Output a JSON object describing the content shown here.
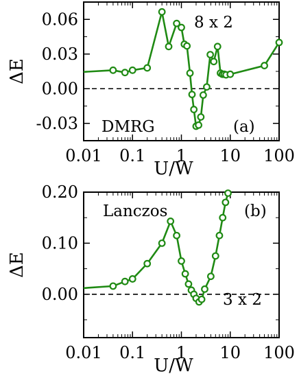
{
  "chart_data": [
    {
      "type": "line",
      "panel": "(a)",
      "method": "DMRG",
      "size": "8 x 2",
      "xlabel": "U/W",
      "ylabel": "ΔE",
      "xscale": "log",
      "xlim": [
        0.01,
        100
      ],
      "ylim": [
        -0.045,
        0.075
      ],
      "xticks": [
        "0.01",
        "0.1",
        "1",
        "10",
        "100"
      ],
      "yticks": [
        "-0.03",
        "0.00",
        "0.03",
        "0.06"
      ],
      "ytick_values": [
        -0.03,
        0.0,
        0.03,
        0.06
      ],
      "reference_line": 0.0,
      "color": "#1f8a13",
      "series": [
        {
          "x": [
            0.01,
            0.04,
            0.07,
            0.1,
            0.2,
            0.4,
            0.55,
            0.8,
            1.0,
            1.15,
            1.3,
            1.5,
            1.65,
            1.8,
            2.0,
            2.25,
            2.5,
            2.8,
            3.3,
            3.9,
            4.6,
            5.5,
            6.3,
            6.9,
            7.5,
            8.2,
            10,
            50,
            100
          ],
          "y": [
            0.0145,
            0.016,
            0.014,
            0.016,
            0.018,
            0.0665,
            0.0365,
            0.0565,
            0.053,
            0.0385,
            0.037,
            0.0135,
            -0.005,
            -0.018,
            -0.0325,
            -0.0315,
            -0.0245,
            -0.0055,
            0.0015,
            0.0295,
            0.0235,
            0.0365,
            0.0135,
            0.0125,
            0.0125,
            0.012,
            0.0125,
            0.02,
            0.04
          ]
        }
      ]
    },
    {
      "type": "line",
      "panel": "(b)",
      "method": "Lanczos",
      "size": "3 x 2",
      "xlabel": "U/W",
      "ylabel": "ΔE",
      "xscale": "log",
      "xlim": [
        0.01,
        100
      ],
      "ylim": [
        -0.085,
        0.2
      ],
      "xticks": [
        "0.01",
        "0.1",
        "1",
        "10",
        "100"
      ],
      "yticks": [
        "0.00",
        "0.10",
        "0.20"
      ],
      "ytick_values": [
        0.0,
        0.1,
        0.2
      ],
      "reference_line": 0.0,
      "color": "#1f8a13",
      "series": [
        {
          "x": [
            0.01,
            0.04,
            0.07,
            0.1,
            0.2,
            0.4,
            0.6,
            0.8,
            1.0,
            1.2,
            1.4,
            1.6,
            1.8,
            2.0,
            2.3,
            2.6,
            3.0,
            4.0,
            5.0,
            6.0,
            7.0,
            8.0,
            9.0
          ],
          "y": [
            0.012,
            0.016,
            0.025,
            0.03,
            0.06,
            0.1,
            0.143,
            0.115,
            0.065,
            0.04,
            0.02,
            0.008,
            0.0,
            -0.008,
            -0.015,
            -0.01,
            0.01,
            0.035,
            0.075,
            0.115,
            0.15,
            0.18,
            0.198
          ]
        }
      ]
    }
  ]
}
